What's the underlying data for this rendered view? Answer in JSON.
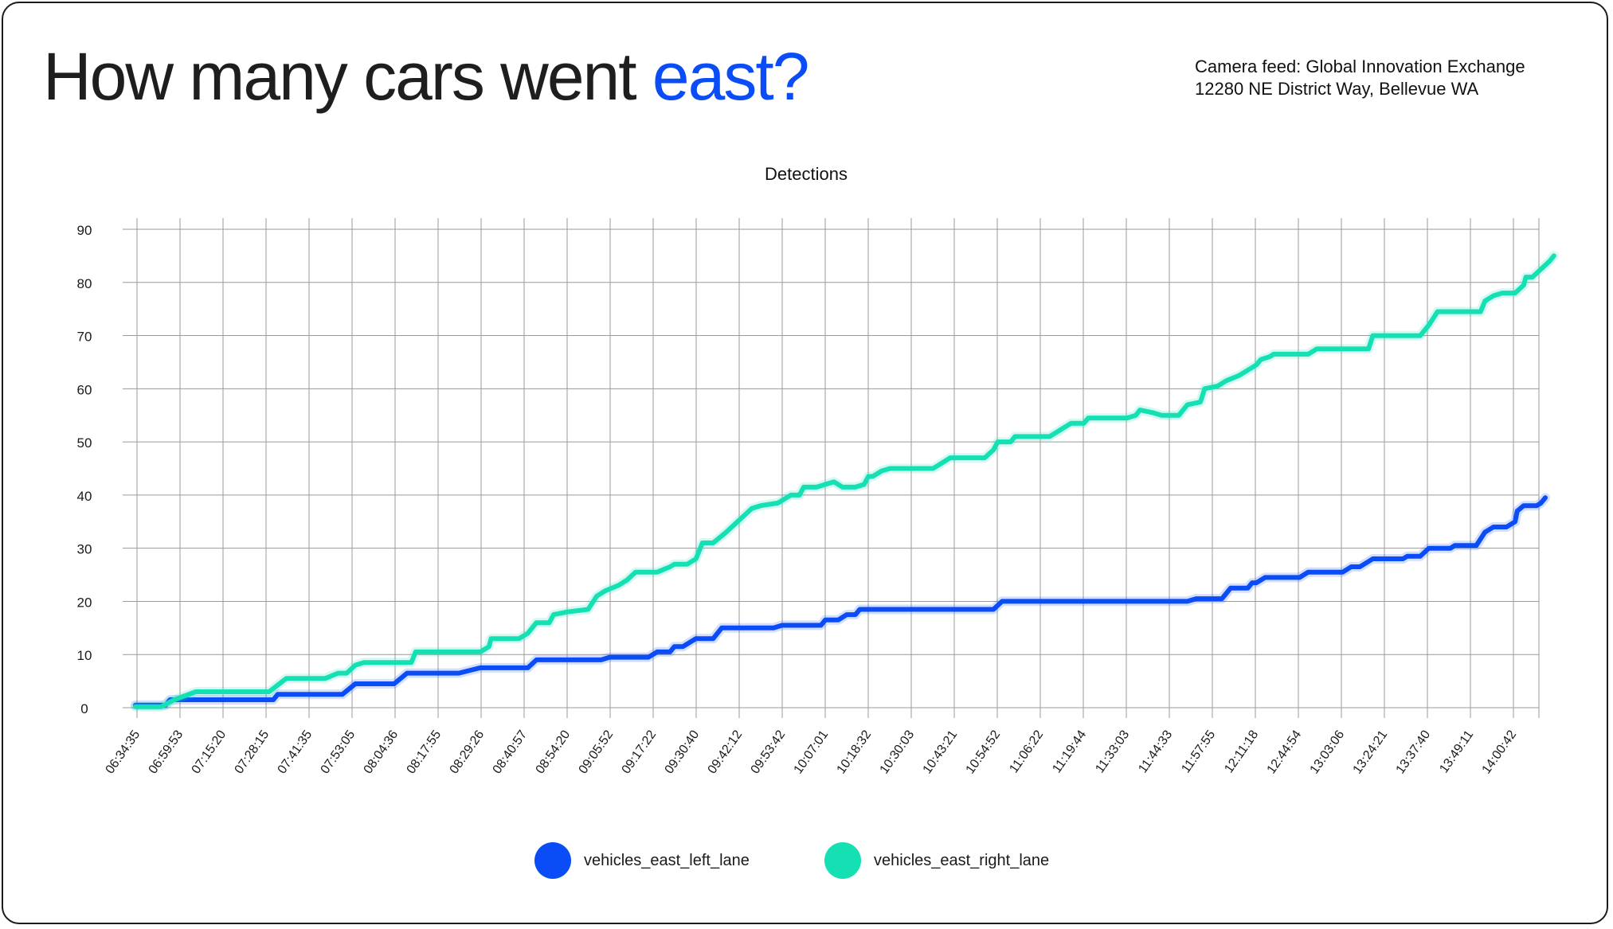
{
  "header": {
    "title_prefix": "How many cars went ",
    "title_accent": "east?",
    "accent_color": "#0a4cf5",
    "camera_line1": "Camera feed: Global Innovation Exchange",
    "camera_line2": "12280 NE District Way, Bellevue WA"
  },
  "chart_data": {
    "type": "line",
    "title": "Detections",
    "xlabel": "",
    "ylabel": "",
    "ylim": [
      0,
      90
    ],
    "yticks": [
      0,
      10,
      20,
      30,
      40,
      50,
      60,
      70,
      80,
      90
    ],
    "xlim": [
      0,
      32.7
    ],
    "x_tick_labels": [
      "06:34:35",
      "06:59:53",
      "07:15:20",
      "07:28:15",
      "07:41:35",
      "07:53:05",
      "08:04:36",
      "08:17:55",
      "08:29:26",
      "08:40:57",
      "08:54:20",
      "09:05:52",
      "09:17:22",
      "09:30:40",
      "09:42:12",
      "09:53:42",
      "10:07:01",
      "10:18:32",
      "10:30:03",
      "10:43:21",
      "10:54:52",
      "11:06:22",
      "11:19:44",
      "11:33:03",
      "11:44:33",
      "11:57:55",
      "12:11:18",
      "12:44:54",
      "13:03:06",
      "13:24:21",
      "13:37:40",
      "13:49:11",
      "14:00:42"
    ],
    "legend_position": "bottom-center",
    "series": [
      {
        "name": "vehicles_east_left_lane",
        "color": "#0a4cf5",
        "points": [
          [
            0,
            0.5
          ],
          [
            0.7,
            0.5
          ],
          [
            0.8,
            1.5
          ],
          [
            3.2,
            1.5
          ],
          [
            3.3,
            2.5
          ],
          [
            4.8,
            2.5
          ],
          [
            5.1,
            4.5
          ],
          [
            6.0,
            4.5
          ],
          [
            6.3,
            6.5
          ],
          [
            7.5,
            6.5
          ],
          [
            8.0,
            7.5
          ],
          [
            9.1,
            7.5
          ],
          [
            9.3,
            9.0
          ],
          [
            10.8,
            9.0
          ],
          [
            11.0,
            9.5
          ],
          [
            11.9,
            9.5
          ],
          [
            12.1,
            10.5
          ],
          [
            12.4,
            10.5
          ],
          [
            12.5,
            11.5
          ],
          [
            12.7,
            11.5
          ],
          [
            13.0,
            13.0
          ],
          [
            13.4,
            13.0
          ],
          [
            13.6,
            15.0
          ],
          [
            14.8,
            15.0
          ],
          [
            15.0,
            15.5
          ],
          [
            15.9,
            15.5
          ],
          [
            16.0,
            16.5
          ],
          [
            16.3,
            16.5
          ],
          [
            16.5,
            17.5
          ],
          [
            16.7,
            17.5
          ],
          [
            16.8,
            18.5
          ],
          [
            19.9,
            18.5
          ],
          [
            20.1,
            20.0
          ],
          [
            24.4,
            20.0
          ],
          [
            24.6,
            20.5
          ],
          [
            25.2,
            20.5
          ],
          [
            25.4,
            22.5
          ],
          [
            25.8,
            22.5
          ],
          [
            25.9,
            23.5
          ],
          [
            26.0,
            23.5
          ],
          [
            26.2,
            24.5
          ],
          [
            27.0,
            24.5
          ],
          [
            27.2,
            25.5
          ],
          [
            28.0,
            25.5
          ],
          [
            28.2,
            26.5
          ],
          [
            28.4,
            26.5
          ],
          [
            28.7,
            28.0
          ],
          [
            29.4,
            28.0
          ],
          [
            29.5,
            28.5
          ],
          [
            29.8,
            28.5
          ],
          [
            30.0,
            30.0
          ],
          [
            30.5,
            30.0
          ],
          [
            30.6,
            30.5
          ],
          [
            31.1,
            30.5
          ],
          [
            31.3,
            33.0
          ],
          [
            31.5,
            34.0
          ],
          [
            31.8,
            34.0
          ],
          [
            32.0,
            35.0
          ],
          [
            32.05,
            37.0
          ],
          [
            32.2,
            38.0
          ],
          [
            32.5,
            38.0
          ],
          [
            32.6,
            38.5
          ],
          [
            32.7,
            39.5
          ]
        ]
      },
      {
        "name": "vehicles_east_right_lane",
        "color": "#15e0b4",
        "points": [
          [
            0,
            0.2
          ],
          [
            0.6,
            0.2
          ],
          [
            0.9,
            1.5
          ],
          [
            1.4,
            3.0
          ],
          [
            3.1,
            3.0
          ],
          [
            3.5,
            5.5
          ],
          [
            4.4,
            5.5
          ],
          [
            4.7,
            6.5
          ],
          [
            4.9,
            6.5
          ],
          [
            5.1,
            8.0
          ],
          [
            5.3,
            8.5
          ],
          [
            6.4,
            8.5
          ],
          [
            6.5,
            10.5
          ],
          [
            8.0,
            10.5
          ],
          [
            8.2,
            11.5
          ],
          [
            8.25,
            13.0
          ],
          [
            8.9,
            13.0
          ],
          [
            9.1,
            14.0
          ],
          [
            9.3,
            16.0
          ],
          [
            9.6,
            16.0
          ],
          [
            9.7,
            17.5
          ],
          [
            10.0,
            18.0
          ],
          [
            10.5,
            18.5
          ],
          [
            10.7,
            21.0
          ],
          [
            10.9,
            22.0
          ],
          [
            11.2,
            23.0
          ],
          [
            11.4,
            24.0
          ],
          [
            11.6,
            25.5
          ],
          [
            12.1,
            25.5
          ],
          [
            12.4,
            26.5
          ],
          [
            12.5,
            27.0
          ],
          [
            12.8,
            27.0
          ],
          [
            13.0,
            28.0
          ],
          [
            13.15,
            31.0
          ],
          [
            13.4,
            31.0
          ],
          [
            13.7,
            33.0
          ],
          [
            13.9,
            34.5
          ],
          [
            14.1,
            36.0
          ],
          [
            14.3,
            37.5
          ],
          [
            14.5,
            38.0
          ],
          [
            14.9,
            38.5
          ],
          [
            15.2,
            40.0
          ],
          [
            15.4,
            40.0
          ],
          [
            15.5,
            41.5
          ],
          [
            15.8,
            41.5
          ],
          [
            16.0,
            42.0
          ],
          [
            16.2,
            42.5
          ],
          [
            16.4,
            41.5
          ],
          [
            16.7,
            41.5
          ],
          [
            16.9,
            42.0
          ],
          [
            17.0,
            43.5
          ],
          [
            17.1,
            43.5
          ],
          [
            17.3,
            44.5
          ],
          [
            17.5,
            45.0
          ],
          [
            18.5,
            45.0
          ],
          [
            18.7,
            46.0
          ],
          [
            18.9,
            47.0
          ],
          [
            19.7,
            47.0
          ],
          [
            19.9,
            48.5
          ],
          [
            20.0,
            50.0
          ],
          [
            20.3,
            50.0
          ],
          [
            20.4,
            51.0
          ],
          [
            21.2,
            51.0
          ],
          [
            21.4,
            52.0
          ],
          [
            21.7,
            53.5
          ],
          [
            22.0,
            53.5
          ],
          [
            22.1,
            54.5
          ],
          [
            23.0,
            54.5
          ],
          [
            23.2,
            55.0
          ],
          [
            23.3,
            56.0
          ],
          [
            23.6,
            55.5
          ],
          [
            23.8,
            55.0
          ],
          [
            24.2,
            55.0
          ],
          [
            24.4,
            57.0
          ],
          [
            24.7,
            57.5
          ],
          [
            24.8,
            60.0
          ],
          [
            25.1,
            60.5
          ],
          [
            25.3,
            61.5
          ],
          [
            25.6,
            62.5
          ],
          [
            25.8,
            63.5
          ],
          [
            26.0,
            64.5
          ],
          [
            26.1,
            65.5
          ],
          [
            26.3,
            66.0
          ],
          [
            26.4,
            66.5
          ],
          [
            27.2,
            66.5
          ],
          [
            27.4,
            67.5
          ],
          [
            28.6,
            67.5
          ],
          [
            28.7,
            70.0
          ],
          [
            29.8,
            70.0
          ],
          [
            30.0,
            72.0
          ],
          [
            30.2,
            74.5
          ],
          [
            31.2,
            74.5
          ],
          [
            31.3,
            76.5
          ],
          [
            31.5,
            77.5
          ],
          [
            31.7,
            78.0
          ],
          [
            32.0,
            78.0
          ],
          [
            32.2,
            79.5
          ],
          [
            32.25,
            81.0
          ],
          [
            32.4,
            81.0
          ],
          [
            32.6,
            82.5
          ],
          [
            32.8,
            84.0
          ],
          [
            32.9,
            85.0
          ]
        ]
      }
    ]
  }
}
